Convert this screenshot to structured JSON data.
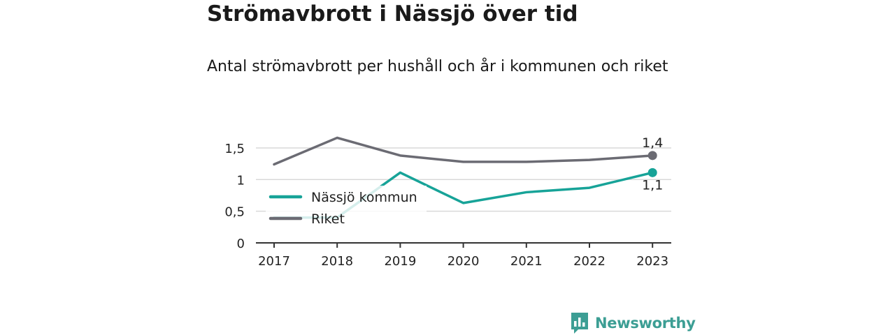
{
  "title": "Strömavbrott i Nässjö över tid",
  "subtitle": "Antal strömavbrott per hushåll och år i kommunen och riket",
  "brand": {
    "name": "Newsworthy"
  },
  "chart_data": {
    "type": "line",
    "categories": [
      "2017",
      "2018",
      "2019",
      "2020",
      "2021",
      "2022",
      "2023"
    ],
    "ylim": [
      0,
      1.5
    ],
    "yticks": [
      0,
      0.5,
      1,
      1.5
    ],
    "ytick_labels": [
      "0",
      "0,5",
      "1",
      "1,5"
    ],
    "grid": true,
    "legend_position": "left",
    "series": [
      {
        "name": "Nässjö kommun",
        "color": "#17a398",
        "values": [
          0.4,
          0.4,
          1.11,
          0.63,
          0.8,
          0.87,
          1.11
        ],
        "end_label": "1,1"
      },
      {
        "name": "Riket",
        "color": "#6b6b73",
        "values": [
          1.24,
          1.66,
          1.38,
          1.28,
          1.28,
          1.31,
          1.38
        ],
        "end_label": "1,4"
      }
    ]
  }
}
